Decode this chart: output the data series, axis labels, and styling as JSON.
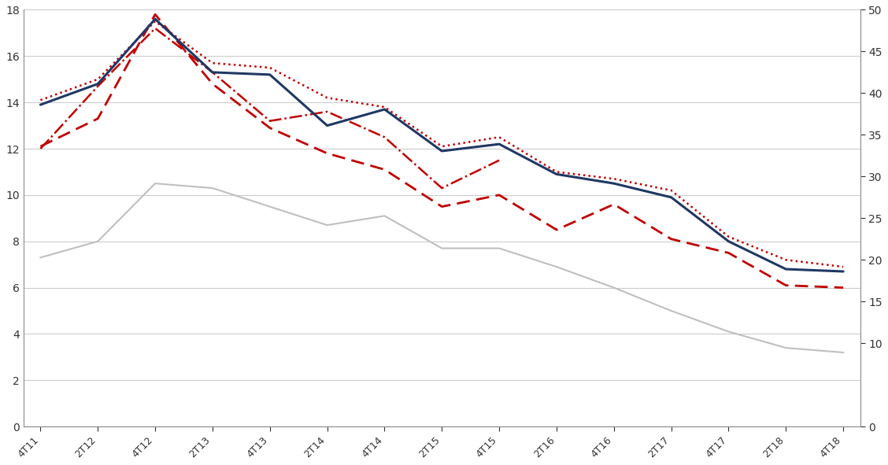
{
  "x_labels": [
    "4T11",
    "2T12",
    "4T12",
    "2T13",
    "4T13",
    "2T14",
    "4T14",
    "2T15",
    "4T15",
    "2T16",
    "4T16",
    "2T17",
    "4T17",
    "2T18",
    "4T18"
  ],
  "x_positions": [
    0,
    1,
    2,
    3,
    4,
    5,
    6,
    7,
    8,
    9,
    10,
    11,
    12,
    13,
    14
  ],
  "navy_line": [
    13.9,
    14.8,
    17.6,
    15.3,
    15.2,
    13.0,
    13.7,
    11.9,
    12.2,
    10.9,
    10.5,
    9.9,
    8.0,
    6.8,
    6.7
  ],
  "red_dotted": [
    14.1,
    15.0,
    17.5,
    15.7,
    15.5,
    14.2,
    13.8,
    12.1,
    12.5,
    11.0,
    10.7,
    10.2,
    8.2,
    7.2,
    6.9
  ],
  "red_dashed": [
    12.1,
    13.3,
    17.8,
    14.8,
    12.9,
    11.8,
    11.1,
    9.5,
    10.0,
    8.5,
    9.6,
    8.1,
    7.5,
    6.1,
    6.0
  ],
  "red_dashdot": [
    12.0,
    14.7,
    17.2,
    15.3,
    13.2,
    13.6,
    12.5,
    10.3,
    11.5,
    null,
    null,
    null,
    null,
    null,
    null
  ],
  "gray_line": [
    7.3,
    8.0,
    10.5,
    10.3,
    9.5,
    8.7,
    9.1,
    7.7,
    7.7,
    6.9,
    6.0,
    5.0,
    4.1,
    3.4,
    3.2
  ],
  "ylim_left": [
    0,
    18
  ],
  "ylim_right": [
    0,
    50
  ],
  "y_ticks_left": [
    0,
    2,
    4,
    6,
    8,
    10,
    12,
    14,
    16,
    18
  ],
  "y_ticks_right": [
    0,
    10,
    15,
    20,
    25,
    30,
    35,
    40,
    45,
    50
  ],
  "navy_color": "#1f3864",
  "red_color": "#c00000",
  "gray_color": "#bfbfbf",
  "bg_color": "#ffffff",
  "grid_color": "#cccccc"
}
